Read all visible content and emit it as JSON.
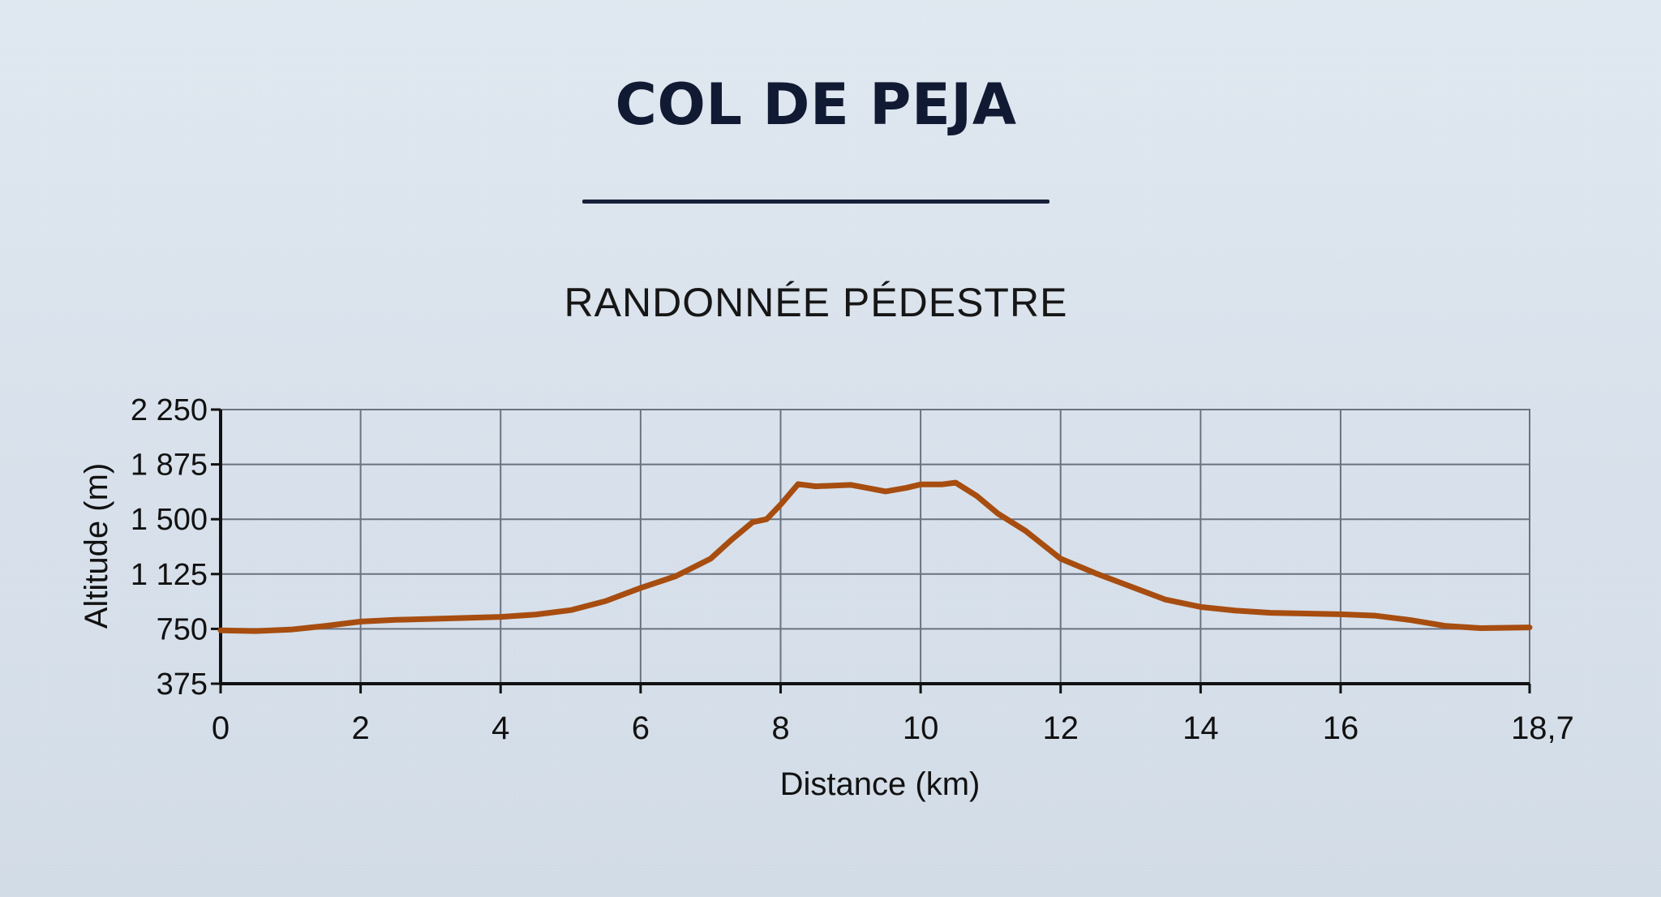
{
  "header": {
    "title": "COL DE PEJA",
    "subtitle": "RANDONNÉE PÉDESTRE"
  },
  "chart_data": {
    "type": "area",
    "title": "COL DE PEJA",
    "subtitle": "RANDONNÉE PÉDESTRE",
    "xlabel": "Distance (km)",
    "ylabel": "Altitude (m)",
    "xlim": [
      0,
      18.7
    ],
    "ylim": [
      375,
      2250
    ],
    "grid": true,
    "legend": "none",
    "x_ticks": [
      "0",
      "2",
      "4",
      "6",
      "8",
      "10",
      "12",
      "14",
      "16",
      "18,7"
    ],
    "y_ticks": [
      "2 250",
      "1 875",
      "1 500",
      "1 125",
      "750",
      "375"
    ],
    "series": [
      {
        "x": [
          0,
          0.5,
          1,
          1.5,
          2,
          2.5,
          3,
          3.5,
          4,
          4.5,
          5,
          5.5,
          6,
          6.5,
          7,
          7.3,
          7.6,
          7.8,
          8.0,
          8.25,
          8.5,
          9.0,
          9.5,
          9.8,
          10.0,
          10.3,
          10.5,
          10.8,
          11.1,
          11.5,
          12.0,
          12.5,
          13.0,
          13.5,
          14.0,
          14.5,
          15.0,
          15.5,
          16.0,
          16.5,
          17.0,
          17.5,
          18.0,
          18.7
        ],
        "y": [
          740,
          735,
          745,
          770,
          800,
          812,
          818,
          825,
          832,
          848,
          878,
          940,
          1030,
          1110,
          1230,
          1360,
          1480,
          1500,
          1600,
          1740,
          1725,
          1735,
          1690,
          1715,
          1738,
          1738,
          1750,
          1660,
          1540,
          1420,
          1230,
          1130,
          1040,
          950,
          900,
          875,
          860,
          855,
          850,
          840,
          810,
          770,
          755,
          760
        ]
      }
    ],
    "colors": {
      "line": "#a74d10",
      "axis": "#111111",
      "grid": "#6b7280"
    }
  }
}
